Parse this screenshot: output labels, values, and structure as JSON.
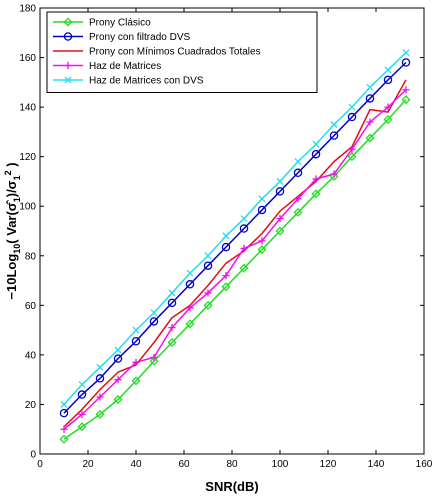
{
  "chart_data": {
    "type": "line",
    "title": "",
    "xlabel": "SNR(dB)",
    "ylabel_parts": {
      "pre": "−10Log",
      "sub": "10",
      "mid": "( Var(",
      "sigma": "σ̂",
      "sub1": "1",
      "mid2": ")/",
      "sigma2": "σ",
      "sub2": "1",
      "sup2": "2",
      "post": " )"
    },
    "xlim": [
      0,
      160
    ],
    "ylim": [
      0,
      180
    ],
    "xticks": [
      0,
      20,
      40,
      60,
      80,
      100,
      120,
      140,
      160
    ],
    "yticks": [
      0,
      20,
      40,
      60,
      80,
      100,
      120,
      140,
      160,
      180
    ],
    "legend_position": "top-left",
    "grid": false,
    "series": [
      {
        "name": "Prony Clásico",
        "color": "#22dd22",
        "marker": "diamond",
        "x": [
          10,
          17.5,
          25,
          32.5,
          40,
          47.5,
          55,
          62.5,
          70,
          77.5,
          85,
          92.5,
          100,
          107.5,
          115,
          122.5,
          130,
          137.5,
          145,
          152.5
        ],
        "y": [
          6,
          11,
          16,
          22,
          29.5,
          37.5,
          45,
          52.5,
          60,
          67.5,
          75,
          82.5,
          90,
          97.5,
          105,
          112,
          120,
          127.5,
          135,
          143
        ]
      },
      {
        "name": "Prony con filtrado DVS",
        "color": "#0000cc",
        "marker": "circle",
        "x": [
          10,
          17.5,
          25,
          32.5,
          40,
          47.5,
          55,
          62.5,
          70,
          77.5,
          85,
          92.5,
          100,
          107.5,
          115,
          122.5,
          130,
          137.5,
          145,
          152.5
        ],
        "y": [
          16.5,
          24,
          30.5,
          38.5,
          45.5,
          53.5,
          61,
          68.5,
          76,
          83.5,
          91,
          98.5,
          106,
          113.5,
          121,
          128.5,
          136,
          143.5,
          151,
          158
        ]
      },
      {
        "name": "Prony con Mínimos Cuadrados Totales",
        "color": "#dd1111",
        "marker": "none",
        "x": [
          10,
          17.5,
          25,
          32.5,
          40,
          47.5,
          55,
          62.5,
          70,
          77.5,
          85,
          92.5,
          100,
          107.5,
          115,
          122.5,
          130,
          137.5,
          145,
          152.5
        ],
        "y": [
          11,
          18,
          26,
          33,
          36,
          45,
          55,
          60,
          68,
          77,
          82,
          89,
          98,
          104,
          110,
          118,
          124,
          139,
          138,
          151
        ]
      },
      {
        "name": "Haz de Matrices",
        "color": "#ee11ee",
        "marker": "plus",
        "x": [
          10,
          17.5,
          25,
          32.5,
          40,
          47.5,
          55,
          62.5,
          70,
          77.5,
          85,
          92.5,
          100,
          107.5,
          115,
          122.5,
          130,
          137.5,
          145,
          152.5
        ],
        "y": [
          10,
          16,
          23,
          30,
          37,
          39,
          51,
          59,
          65,
          72,
          83,
          86,
          95,
          103,
          111,
          113,
          123,
          134,
          140,
          147
        ]
      },
      {
        "name": "Haz de Matrices con DVS",
        "color": "#22ddee",
        "marker": "x",
        "x": [
          10,
          17.5,
          25,
          32.5,
          40,
          47.5,
          55,
          62.5,
          70,
          77.5,
          85,
          92.5,
          100,
          107.5,
          115,
          122.5,
          130,
          137.5,
          145,
          152.5
        ],
        "y": [
          20,
          28,
          35,
          42,
          50,
          57,
          65,
          73,
          80,
          88,
          95,
          103,
          110,
          118,
          125,
          133,
          140,
          148,
          155,
          162
        ]
      }
    ]
  }
}
